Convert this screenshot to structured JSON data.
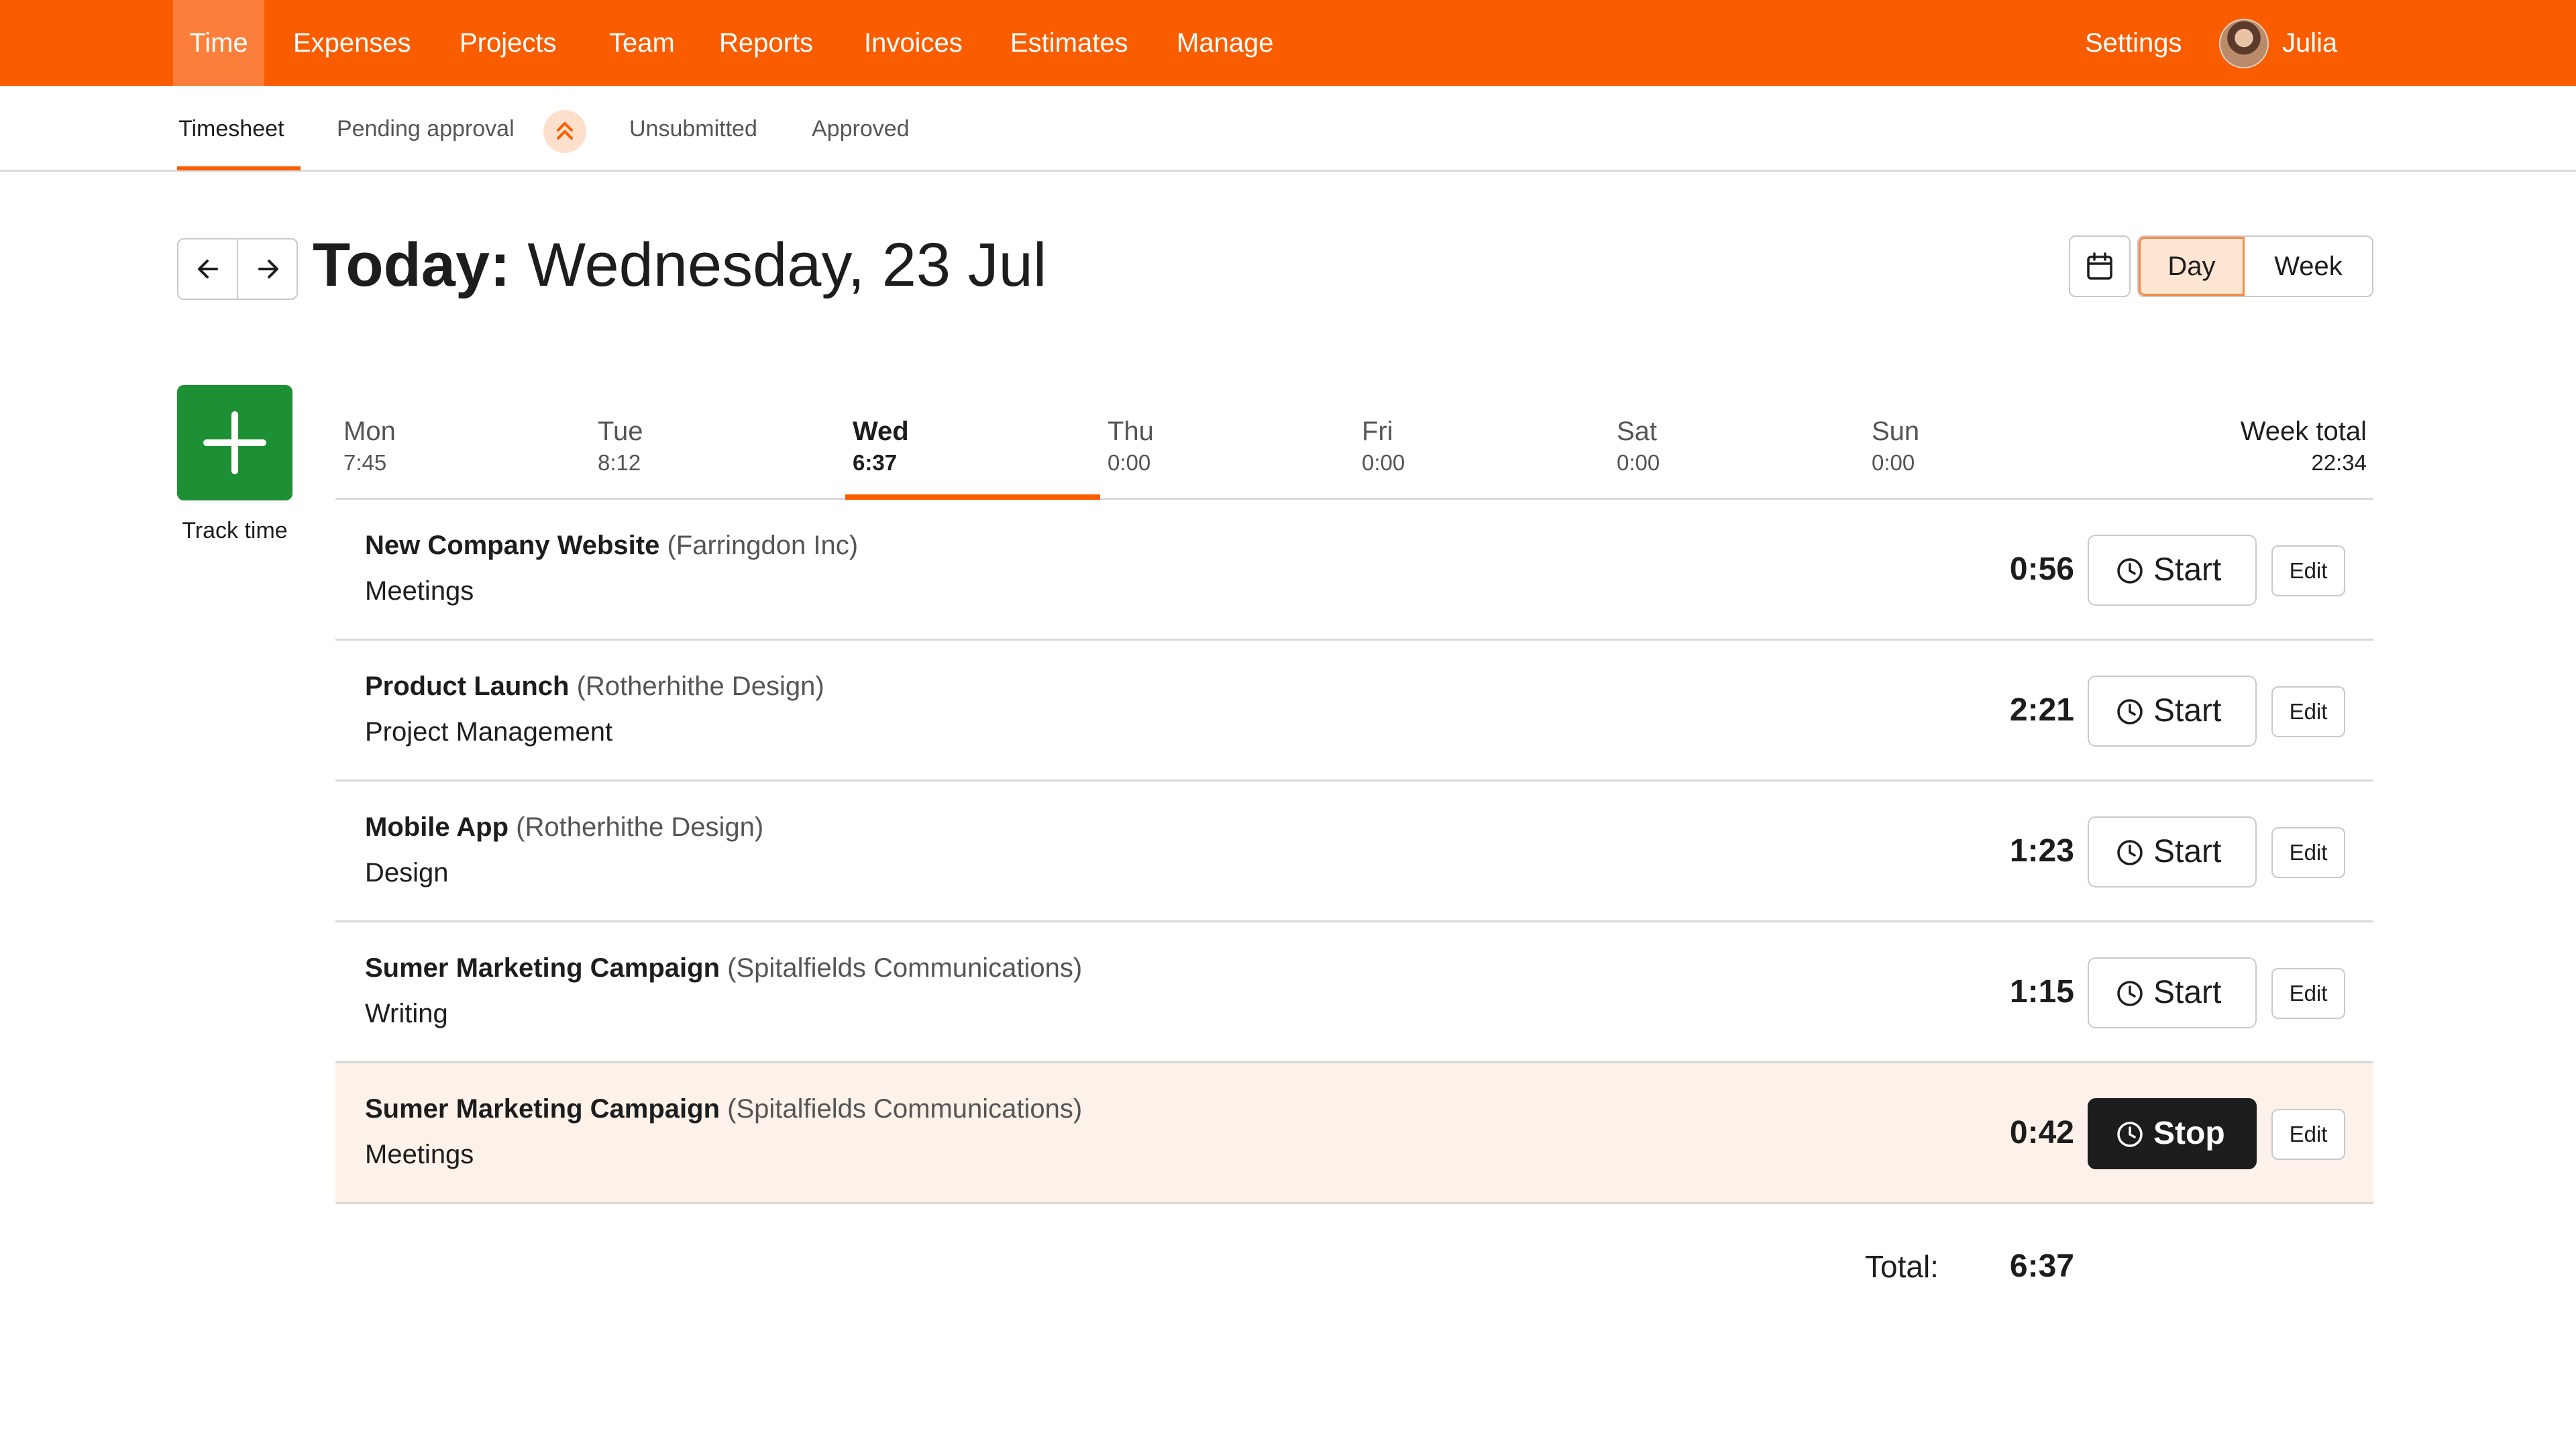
{
  "nav": {
    "items": [
      "Time",
      "Expenses",
      "Projects",
      "Team",
      "Reports",
      "Invoices",
      "Estimates",
      "Manage"
    ],
    "settings": "Settings",
    "user": "Julia"
  },
  "subnav": {
    "items": [
      "Timesheet",
      "Pending approval",
      "Unsubmitted",
      "Approved"
    ]
  },
  "header": {
    "title_prefix": "Today:",
    "title_date": "Wednesday, 23 Jul",
    "view_day": "Day",
    "view_week": "Week"
  },
  "track_time_label": "Track time",
  "week": {
    "days": [
      {
        "name": "Mon",
        "hours": "7:45"
      },
      {
        "name": "Tue",
        "hours": "8:12"
      },
      {
        "name": "Wed",
        "hours": "6:37"
      },
      {
        "name": "Thu",
        "hours": "0:00"
      },
      {
        "name": "Fri",
        "hours": "0:00"
      },
      {
        "name": "Sat",
        "hours": "0:00"
      },
      {
        "name": "Sun",
        "hours": "0:00"
      }
    ],
    "total_label": "Week total",
    "total_hours": "22:34"
  },
  "entries": [
    {
      "project": "New Company Website",
      "client": "(Farringdon Inc)",
      "task": "Meetings",
      "duration": "0:56",
      "action": "Start",
      "edit": "Edit"
    },
    {
      "project": "Product Launch",
      "client": "(Rotherhithe Design)",
      "task": "Project Management",
      "duration": "2:21",
      "action": "Start",
      "edit": "Edit"
    },
    {
      "project": "Mobile App",
      "client": "(Rotherhithe Design)",
      "task": "Design",
      "duration": "1:23",
      "action": "Start",
      "edit": "Edit"
    },
    {
      "project": "Sumer Marketing Campaign",
      "client": "(Spitalfields Communications)",
      "task": "Writing",
      "duration": "1:15",
      "action": "Start",
      "edit": "Edit"
    },
    {
      "project": "Sumer Marketing Campaign",
      "client": "(Spitalfields Communications)",
      "task": "Meetings",
      "duration": "0:42",
      "action": "Stop",
      "edit": "Edit"
    }
  ],
  "total": {
    "label": "Total:",
    "value": "6:37"
  },
  "colors": {
    "brand": "#fa5d00",
    "track_button": "#1d8f34",
    "running_row": "#fdf2ea"
  }
}
